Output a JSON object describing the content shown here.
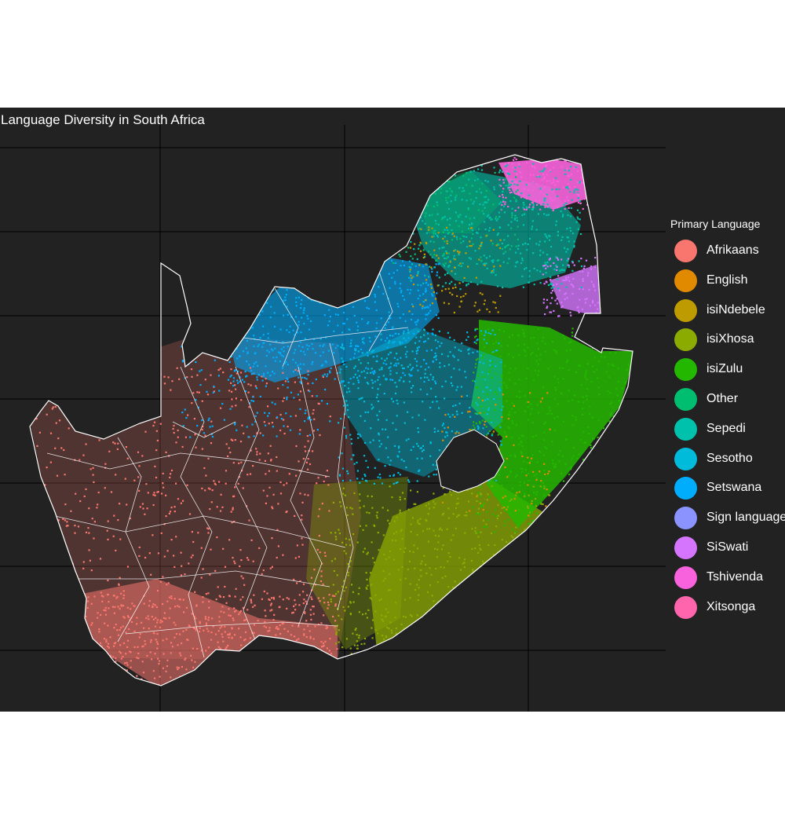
{
  "title": "Language Diversity in South Africa",
  "legend": {
    "title": "Primary Language",
    "items": [
      {
        "label": "Afrikaans",
        "color": "#F8766D"
      },
      {
        "label": "English",
        "color": "#E18A00"
      },
      {
        "label": "isiNdebele",
        "color": "#BE9C00"
      },
      {
        "label": "isiXhosa",
        "color": "#8CAB00"
      },
      {
        "label": "isiZulu",
        "color": "#24B700"
      },
      {
        "label": "Other",
        "color": "#00BE70"
      },
      {
        "label": "Sepedi",
        "color": "#00C1AB"
      },
      {
        "label": "Sesotho",
        "color": "#00BBDA"
      },
      {
        "label": "Setswana",
        "color": "#00ACFC"
      },
      {
        "label": "Sign language",
        "color": "#8B93FF"
      },
      {
        "label": "SiSwati",
        "color": "#D575FE"
      },
      {
        "label": "Tshivenda",
        "color": "#F962DD"
      },
      {
        "label": "Xitsonga",
        "color": "#FF65AC"
      }
    ]
  },
  "colors": {
    "panel_background": "#222222",
    "border": "#ffffff",
    "gridline": "#000000"
  }
}
